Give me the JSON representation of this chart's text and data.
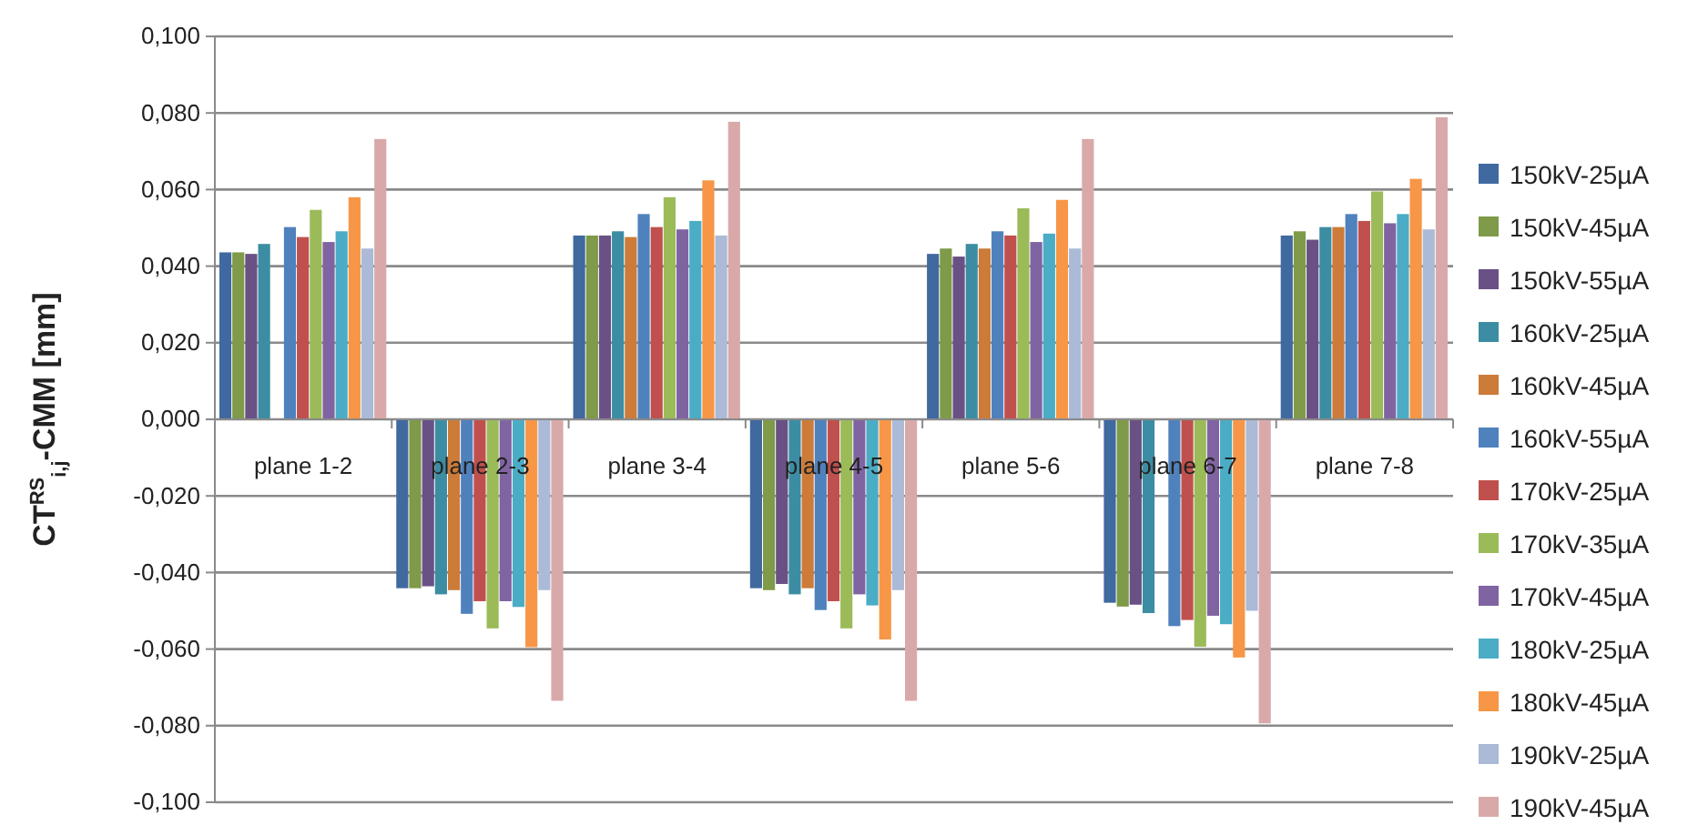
{
  "chart_data": {
    "type": "bar",
    "ylabel": "CT$^{RS}$$_{i,j}$-CMM [mm]",
    "categories": [
      "plane 1-2",
      "plane 2-3",
      "plane 3-4",
      "plane 4-5",
      "plane 5-6",
      "plane 6-7",
      "plane 7-8"
    ],
    "ylim": [
      -0.1,
      0.1
    ],
    "yticks": [
      {
        "value": -0.1,
        "label": "-0,100"
      },
      {
        "value": -0.08,
        "label": "-0,080"
      },
      {
        "value": -0.06,
        "label": "-0,060"
      },
      {
        "value": -0.04,
        "label": "-0,040"
      },
      {
        "value": -0.02,
        "label": "-0,020"
      },
      {
        "value": 0,
        "label": "0,000"
      },
      {
        "value": 0.02,
        "label": "0,020"
      },
      {
        "value": 0.04,
        "label": "0,040"
      },
      {
        "value": 0.06,
        "label": "0,060"
      },
      {
        "value": 0.08,
        "label": "0,080"
      },
      {
        "value": 0.1,
        "label": "0,100"
      }
    ],
    "grid": "y",
    "legend": "right",
    "series": [
      {
        "name": "150kV-25µA",
        "color": "#4069a0",
        "values": [
          0.0436,
          -0.0441,
          0.048,
          -0.0441,
          0.0432,
          -0.0479,
          0.048
        ]
      },
      {
        "name": "150kV-45µA",
        "color": "#7f9a48",
        "values": [
          0.0436,
          -0.0441,
          0.048,
          -0.0446,
          0.0446,
          -0.0489,
          0.0491
        ]
      },
      {
        "name": "150kV-55µA",
        "color": "#695185",
        "values": [
          0.0432,
          -0.0436,
          0.048,
          -0.043,
          0.0425,
          -0.0484,
          0.0469
        ]
      },
      {
        "name": "160kV-25µA",
        "color": "#3c8da3",
        "values": [
          0.0458,
          -0.0457,
          0.0491,
          -0.0457,
          0.0458,
          -0.0506,
          0.0502
        ]
      },
      {
        "name": "160kV-45µA",
        "color": "#cc7b38",
        "values": [
          null,
          -0.0446,
          0.0476,
          -0.0441,
          0.0446,
          null,
          0.0502
        ]
      },
      {
        "name": "160kV-55µA",
        "color": "#4f81bd",
        "values": [
          0.0502,
          -0.0508,
          0.0536,
          -0.0498,
          0.0491,
          -0.054,
          0.0536
        ]
      },
      {
        "name": "170kV-25µA",
        "color": "#c0504d",
        "values": [
          0.0476,
          -0.0475,
          0.0502,
          -0.0475,
          0.048,
          -0.0524,
          0.0518
        ]
      },
      {
        "name": "170kV-35µA",
        "color": "#9bbb59",
        "values": [
          0.0547,
          -0.0546,
          0.058,
          -0.0546,
          0.0551,
          -0.0594,
          0.0595
        ]
      },
      {
        "name": "170kV-45µA",
        "color": "#8064a2",
        "values": [
          0.0463,
          -0.0475,
          0.0496,
          -0.0457,
          0.0463,
          -0.0513,
          0.0512
        ]
      },
      {
        "name": "180kV-25µA",
        "color": "#4bacc6",
        "values": [
          0.0491,
          -0.049,
          0.0518,
          -0.0486,
          0.0485,
          -0.0535,
          0.0536
        ]
      },
      {
        "name": "180kV-45µA",
        "color": "#f79646",
        "values": [
          0.058,
          -0.0595,
          0.0624,
          -0.0575,
          0.0573,
          -0.0622,
          0.0628
        ]
      },
      {
        "name": "190kV-25µA",
        "color": "#aabad7",
        "values": [
          0.0446,
          -0.0446,
          0.048,
          -0.0446,
          0.0446,
          -0.05,
          0.0496
        ]
      },
      {
        "name": "190kV-45µA",
        "color": "#d9a9a9",
        "values": [
          0.0732,
          -0.0735,
          0.0777,
          -0.0735,
          0.0732,
          -0.0794,
          0.0789
        ]
      }
    ]
  }
}
